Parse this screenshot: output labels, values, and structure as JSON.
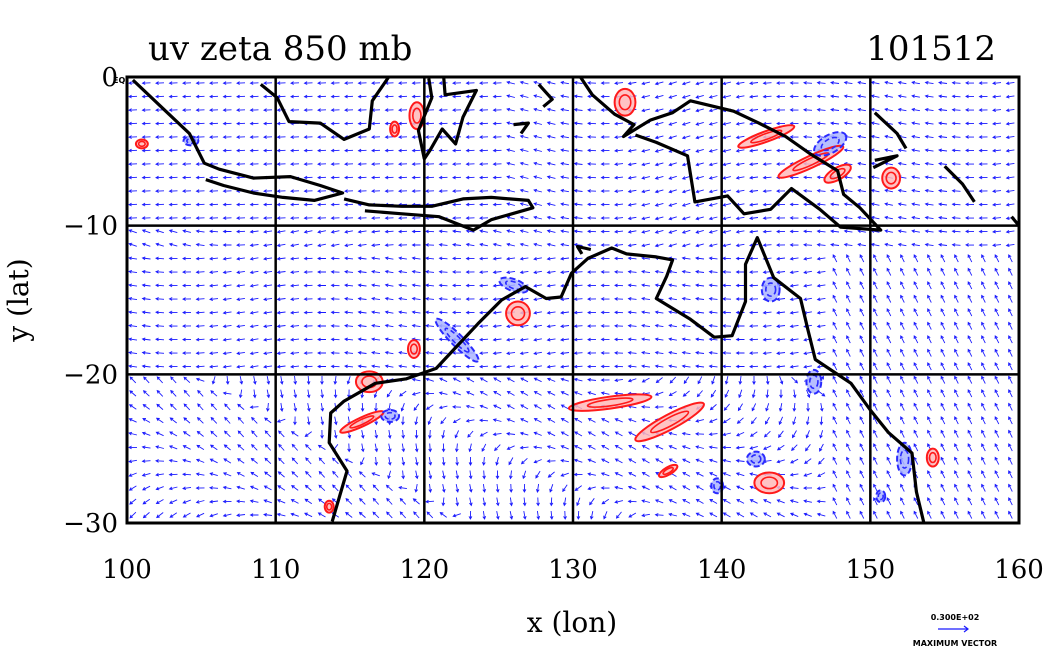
{
  "chart_data": {
    "type": "vector-field-contour-map",
    "title": "uv zeta 850 mb",
    "date_label": "101512",
    "xlabel": "x (lon)",
    "ylabel": "y (lat)",
    "xlim": [
      100,
      160
    ],
    "ylim": [
      -30,
      0
    ],
    "x_ticks": [
      100,
      110,
      120,
      130,
      140,
      150,
      160
    ],
    "y_ticks": [
      0,
      -10,
      -20,
      -30
    ],
    "x_tick_labels": [
      "100",
      "110",
      "120",
      "130",
      "140",
      "150",
      "160"
    ],
    "y_tick_labels": [
      "0",
      "−10",
      "−20",
      "−30"
    ],
    "origin_suffix": "EQ",
    "grid": true,
    "legend": {
      "vector_value": "0.300E+02",
      "vector_caption": "MAXIMUM VECTOR"
    },
    "colors": {
      "vector": "#1a1aff",
      "positive_contour": "#ff1a1a",
      "positive_fill": "#ffb8b8",
      "negative_contour": "#2a2aff",
      "negative_fill": "#aab4ff",
      "coast": "#000000",
      "grid": "#000000"
    },
    "positive_regions": [
      {
        "lon": 132.5,
        "lat": -21.9,
        "rx": 2.8,
        "ry": 0.4,
        "rot": 8
      },
      {
        "lon": 136.5,
        "lat": -23.2,
        "rx": 2.6,
        "ry": 0.5,
        "rot": 28
      },
      {
        "lon": 126.3,
        "lat": -15.9,
        "rx": 0.8,
        "ry": 0.8,
        "rot": 0
      },
      {
        "lon": 115.8,
        "lat": -23.2,
        "rx": 1.6,
        "ry": 0.3,
        "rot": 25
      },
      {
        "lon": 116.3,
        "lat": -20.5,
        "rx": 0.9,
        "ry": 0.7,
        "rot": 0
      },
      {
        "lon": 119.3,
        "lat": -18.3,
        "rx": 0.4,
        "ry": 0.6,
        "rot": 0
      },
      {
        "lon": 143.2,
        "lat": -27.3,
        "rx": 1.0,
        "ry": 0.7,
        "rot": 0
      },
      {
        "lon": 146.0,
        "lat": -5.7,
        "rx": 2.4,
        "ry": 0.4,
        "rot": 25
      },
      {
        "lon": 143.0,
        "lat": -4.0,
        "rx": 2.0,
        "ry": 0.35,
        "rot": 20
      },
      {
        "lon": 151.4,
        "lat": -6.8,
        "rx": 0.6,
        "ry": 0.7,
        "rot": 0
      },
      {
        "lon": 133.5,
        "lat": -1.7,
        "rx": 0.7,
        "ry": 0.9,
        "rot": 0
      },
      {
        "lon": 119.5,
        "lat": -2.6,
        "rx": 0.5,
        "ry": 0.9,
        "rot": 0
      },
      {
        "lon": 118.0,
        "lat": -3.5,
        "rx": 0.3,
        "ry": 0.5,
        "rot": 0
      },
      {
        "lon": 101.0,
        "lat": -4.5,
        "rx": 0.4,
        "ry": 0.3,
        "rot": 0
      },
      {
        "lon": 154.2,
        "lat": -25.6,
        "rx": 0.4,
        "ry": 0.6,
        "rot": 0
      },
      {
        "lon": 147.8,
        "lat": -6.5,
        "rx": 1.0,
        "ry": 0.4,
        "rot": 30
      },
      {
        "lon": 113.6,
        "lat": -28.9,
        "rx": 0.3,
        "ry": 0.4,
        "rot": 0
      },
      {
        "lon": 136.4,
        "lat": -26.5,
        "rx": 0.7,
        "ry": 0.25,
        "rot": 30
      }
    ],
    "negative_regions": [
      {
        "lon": 122.2,
        "lat": -17.7,
        "rx": 2.0,
        "ry": 0.4,
        "rot": -45
      },
      {
        "lon": 126.0,
        "lat": -14.0,
        "rx": 1.0,
        "ry": 0.4,
        "rot": -20
      },
      {
        "lon": 152.3,
        "lat": -25.7,
        "rx": 0.5,
        "ry": 1.1,
        "rot": 0
      },
      {
        "lon": 146.2,
        "lat": -20.5,
        "rx": 0.5,
        "ry": 0.8,
        "rot": 0
      },
      {
        "lon": 142.3,
        "lat": -25.7,
        "rx": 0.6,
        "ry": 0.5,
        "rot": 0
      },
      {
        "lon": 143.3,
        "lat": -14.3,
        "rx": 0.6,
        "ry": 0.8,
        "rot": 0
      },
      {
        "lon": 147.3,
        "lat": -4.5,
        "rx": 1.2,
        "ry": 0.6,
        "rot": 30
      },
      {
        "lon": 117.7,
        "lat": -22.8,
        "rx": 0.6,
        "ry": 0.4,
        "rot": 0
      },
      {
        "lon": 104.3,
        "lat": -4.3,
        "rx": 0.5,
        "ry": 0.3,
        "rot": 0
      },
      {
        "lon": 150.7,
        "lat": -28.2,
        "rx": 0.3,
        "ry": 0.4,
        "rot": 0
      },
      {
        "lon": 139.7,
        "lat": -27.5,
        "rx": 0.4,
        "ry": 0.5,
        "rot": 0
      }
    ],
    "coastlines": [
      [
        [
          100.4,
          -0.2
        ],
        [
          102.5,
          -2.2
        ],
        [
          104.2,
          -3.8
        ],
        [
          105.2,
          -5.8
        ],
        [
          106.2,
          -6.2
        ],
        [
          108.5,
          -6.8
        ],
        [
          111.0,
          -6.7
        ],
        [
          113.0,
          -7.3
        ],
        [
          114.5,
          -7.8
        ],
        [
          112.6,
          -8.3
        ],
        [
          110.5,
          -8.1
        ],
        [
          108.5,
          -7.8
        ],
        [
          106.5,
          -7.3
        ],
        [
          105.3,
          -6.9
        ]
      ],
      [
        [
          109.0,
          -0.5
        ],
        [
          110.1,
          -1.4
        ],
        [
          110.9,
          -3.0
        ],
        [
          113.0,
          -3.1
        ],
        [
          114.6,
          -4.2
        ],
        [
          116.3,
          -3.5
        ],
        [
          116.5,
          -1.6
        ],
        [
          117.6,
          0.0
        ]
      ],
      [
        [
          114.6,
          -8.2
        ],
        [
          116.3,
          -8.6
        ],
        [
          118.5,
          -8.7
        ],
        [
          120.5,
          -8.7
        ],
        [
          122.6,
          -8.2
        ],
        [
          124.5,
          -8.1
        ],
        [
          127.0,
          -8.3
        ],
        [
          127.3,
          -8.8
        ],
        [
          124.5,
          -9.6
        ],
        [
          123.3,
          -10.3
        ],
        [
          121.0,
          -9.4
        ],
        [
          118.5,
          -9.2
        ],
        [
          116.0,
          -9.0
        ]
      ],
      [
        [
          120.3,
          -0.1
        ],
        [
          120.5,
          -1.4
        ],
        [
          119.6,
          -3.6
        ],
        [
          120.0,
          -5.5
        ],
        [
          120.4,
          -4.9
        ],
        [
          121.2,
          -3.5
        ],
        [
          122.1,
          -4.5
        ],
        [
          122.6,
          -2.7
        ],
        [
          123.5,
          -0.9
        ],
        [
          121.4,
          -1.2
        ],
        [
          121.3,
          0.0
        ]
      ],
      [
        [
          130.5,
          0.0
        ],
        [
          131.3,
          -1.2
        ],
        [
          132.8,
          -2.5
        ],
        [
          134.1,
          -3.2
        ],
        [
          133.4,
          -4.0
        ],
        [
          135.2,
          -2.9
        ],
        [
          136.7,
          -2.4
        ],
        [
          137.9,
          -1.6
        ],
        [
          140.8,
          -2.3
        ],
        [
          142.5,
          -3.1
        ],
        [
          144.3,
          -4.0
        ],
        [
          146.0,
          -5.2
        ],
        [
          147.8,
          -6.3
        ],
        [
          148.2,
          -7.9
        ],
        [
          149.3,
          -8.8
        ],
        [
          150.7,
          -10.3
        ],
        [
          148.0,
          -10.1
        ],
        [
          146.6,
          -8.9
        ],
        [
          144.7,
          -7.5
        ],
        [
          143.3,
          -8.9
        ],
        [
          141.5,
          -9.2
        ],
        [
          140.4,
          -8.0
        ],
        [
          138.2,
          -8.4
        ],
        [
          137.7,
          -5.3
        ],
        [
          135.6,
          -4.4
        ],
        [
          134.2,
          -3.9
        ]
      ],
      [
        [
          113.8,
          -29.9
        ],
        [
          114.8,
          -26.5
        ],
        [
          113.6,
          -24.6
        ],
        [
          113.7,
          -22.6
        ],
        [
          114.6,
          -21.8
        ],
        [
          116.7,
          -20.6
        ],
        [
          118.8,
          -20.3
        ],
        [
          120.8,
          -19.6
        ],
        [
          122.2,
          -18.1
        ],
        [
          123.6,
          -16.6
        ],
        [
          125.2,
          -15.0
        ],
        [
          126.8,
          -14.1
        ],
        [
          128.2,
          -14.9
        ],
        [
          129.2,
          -14.8
        ],
        [
          129.9,
          -13.2
        ],
        [
          131.0,
          -12.2
        ],
        [
          132.6,
          -11.5
        ],
        [
          133.6,
          -11.9
        ],
        [
          135.6,
          -12.1
        ],
        [
          136.7,
          -12.3
        ],
        [
          136.3,
          -13.4
        ],
        [
          135.6,
          -14.9
        ],
        [
          137.9,
          -16.3
        ],
        [
          139.5,
          -17.5
        ],
        [
          140.7,
          -17.4
        ],
        [
          141.6,
          -15.1
        ],
        [
          141.6,
          -12.6
        ],
        [
          142.4,
          -10.8
        ],
        [
          143.5,
          -13.5
        ],
        [
          145.3,
          -14.9
        ],
        [
          145.8,
          -17.0
        ],
        [
          146.3,
          -19.0
        ],
        [
          148.7,
          -20.6
        ],
        [
          150.0,
          -22.4
        ],
        [
          151.2,
          -23.9
        ],
        [
          152.8,
          -25.3
        ],
        [
          153.1,
          -27.9
        ],
        [
          153.6,
          -30.0
        ]
      ],
      [
        [
          131.2,
          -11.6
        ],
        [
          130.3,
          -11.4
        ],
        [
          130.6,
          -11.9
        ]
      ],
      [
        [
          126.0,
          -3.2
        ],
        [
          127.0,
          -3.1
        ],
        [
          126.5,
          -3.8
        ]
      ],
      [
        [
          150.3,
          -2.4
        ],
        [
          151.8,
          -3.8
        ],
        [
          152.4,
          -4.8
        ]
      ],
      [
        [
          150.3,
          -5.6
        ],
        [
          151.8,
          -5.3
        ],
        [
          150.2,
          -6.1
        ]
      ],
      [
        [
          155.0,
          -6.0
        ],
        [
          156.2,
          -7.2
        ],
        [
          157.0,
          -8.4
        ]
      ],
      [
        [
          159.5,
          -9.4
        ],
        [
          160.0,
          -10.0
        ]
      ],
      [
        [
          127.7,
          -0.5
        ],
        [
          128.6,
          -1.5
        ],
        [
          128.0,
          -2.0
        ]
      ]
    ]
  }
}
